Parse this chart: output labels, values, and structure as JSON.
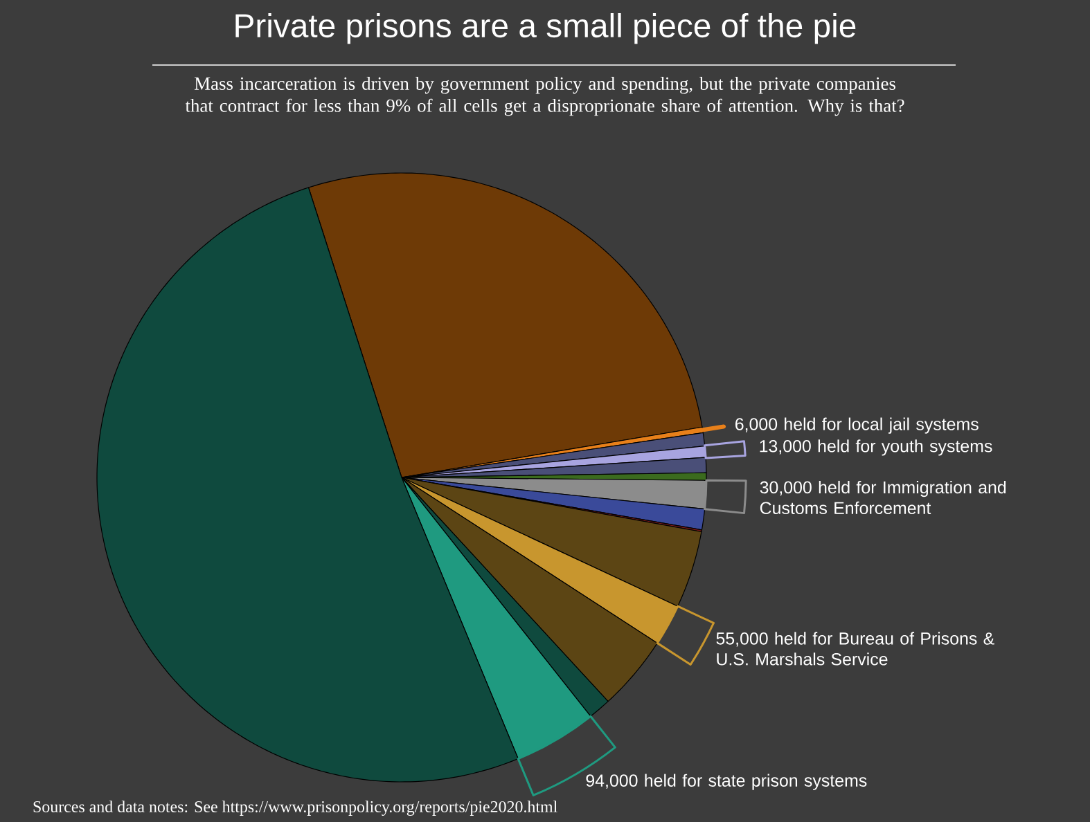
{
  "chart_data": {
    "type": "pie",
    "title": "Private prisons are a small piece of the pie",
    "subtitle": "Mass incarceration is driven by government policy and spending, but the private companies that contract for less than 9% of all cells get a disproprionate share of attention. Why is that?",
    "categories": [
      null,
      "6,000 held for local jail systems",
      null,
      "13,000 held for youth systems",
      null,
      null,
      "30,000 held for Immigration and Customs Enforcement",
      null,
      null,
      null,
      "55,000 held for Bureau of Prisons & U.S. Marshals Service",
      null,
      null,
      "94,000 held for state prison systems",
      null
    ],
    "values": [
      27.3,
      0.3,
      0.7,
      0.6,
      0.8,
      0.4,
      1.5,
      1.1,
      0.1,
      4.1,
      2.2,
      4.0,
      1.2,
      4.4,
      51.3
    ],
    "colors": [
      "#6e3a06",
      "#e8801a",
      "#4a4f78",
      "#a8a4e0",
      "#4a4f78",
      "#3b6b1e",
      "#8c8c8c",
      "#3a4a9a",
      "#7a1a1a",
      "#5c4514",
      "#c8962e",
      "#5c4514",
      "#0f4a3e",
      "#1f9a80",
      "#0f4a3e"
    ],
    "legend": "right",
    "annotations": [
      "Sources and data notes: See https://www.prisonpolicy.org/reports/pie2020.html"
    ]
  }
}
